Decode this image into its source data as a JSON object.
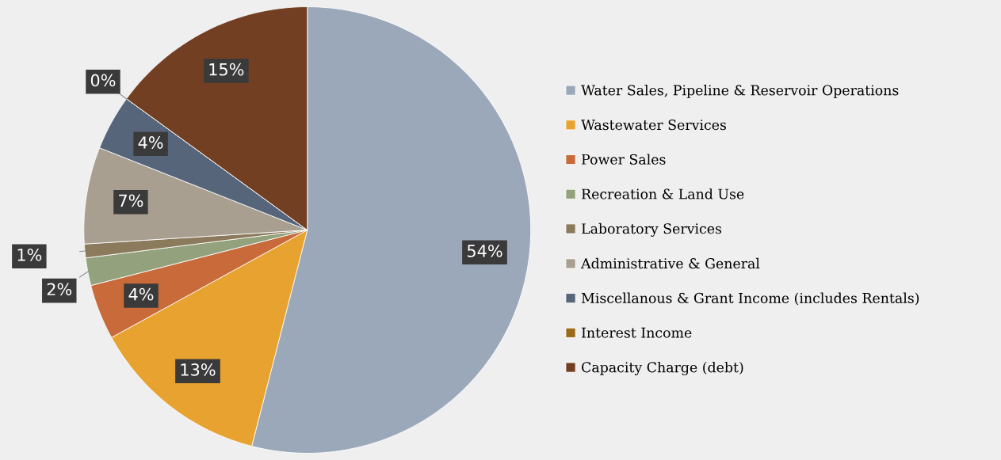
{
  "chart_data": {
    "type": "pie",
    "categories": [
      "Water Sales, Pipeline & Reservoir Operations",
      "Wastewater Services",
      "Power Sales",
      "Recreation & Land Use",
      "Laboratory Services",
      "Administrative & General",
      "Miscellanous & Grant Income (includes Rentals)",
      "Interest Income",
      "Capacity Charge (debt)"
    ],
    "values": [
      54,
      13,
      4,
      2,
      1,
      7,
      4,
      0,
      15
    ],
    "colors": [
      "#9aa8b9",
      "#e8a22f",
      "#c86a3a",
      "#93a27c",
      "#8b7a5b",
      "#a89f90",
      "#56657a",
      "#9a6a1a",
      "#733f22"
    ],
    "value_labels": [
      "54%",
      "13%",
      "4%",
      "2%",
      "1%",
      "7%",
      "4%",
      "0%",
      "15%"
    ],
    "legend": "right"
  }
}
